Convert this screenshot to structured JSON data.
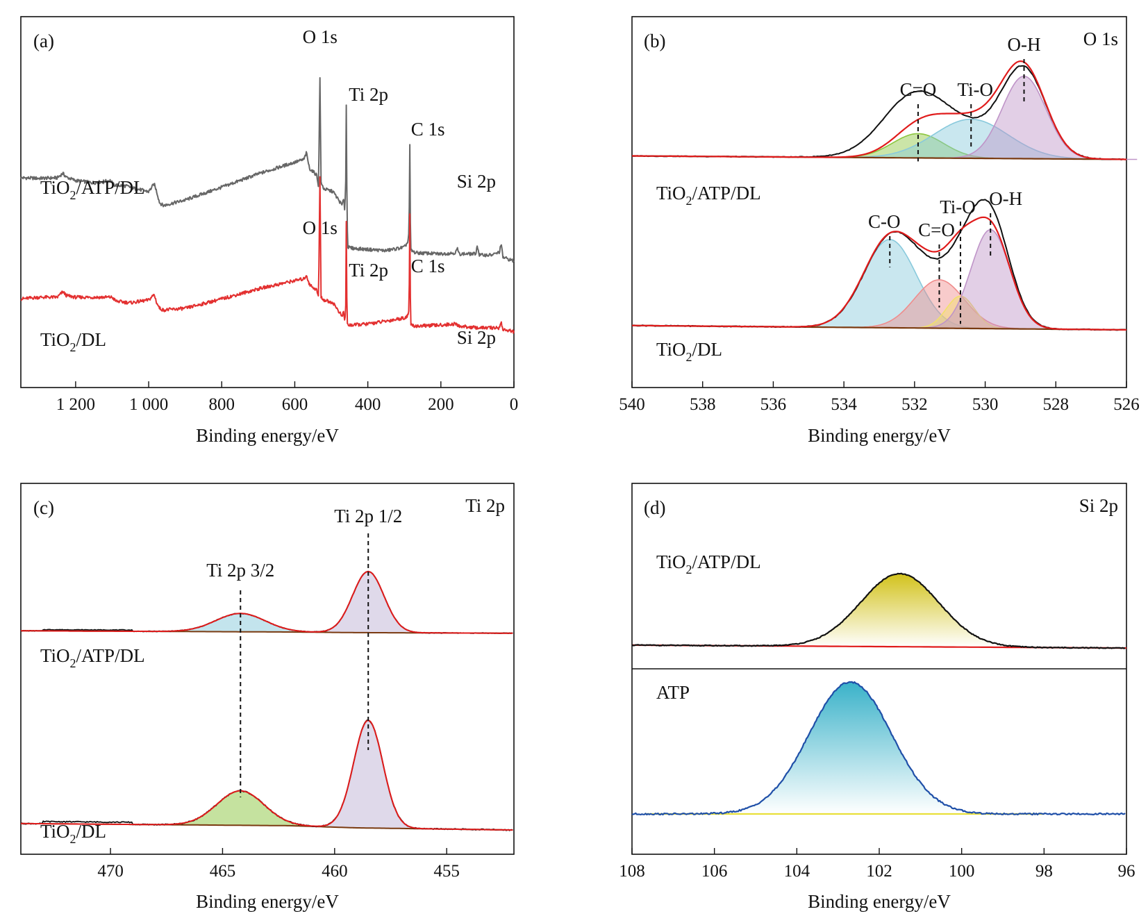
{
  "chart_data": [
    {
      "panel": "(a)",
      "type": "line",
      "xlabel": "Binding energy/eV",
      "xlim": [
        1350,
        0
      ],
      "x_reversed": true,
      "xticks": [
        1200,
        1000,
        800,
        600,
        400,
        200,
        0
      ],
      "xtick_labels": [
        "1 200",
        "1 000",
        "800",
        "600",
        "400",
        "200",
        "0"
      ],
      "y_visible": false,
      "series": [
        {
          "name": "TiO2/ATP/DL",
          "color": "#666666",
          "baseline": 0.5,
          "points": [
            [
              1350,
              0.55
            ],
            [
              1300,
              0.54
            ],
            [
              1250,
              0.55
            ],
            [
              1235,
              0.63
            ],
            [
              1225,
              0.56
            ],
            [
              1200,
              0.5
            ],
            [
              1150,
              0.46
            ],
            [
              1105,
              0.5
            ],
            [
              1095,
              0.42
            ],
            [
              1060,
              0.4
            ],
            [
              1040,
              0.36
            ],
            [
              1000,
              0.3
            ],
            [
              985,
              0.44
            ],
            [
              978,
              0.3
            ],
            [
              970,
              0.1
            ],
            [
              960,
              0.05
            ],
            [
              900,
              0.15
            ],
            [
              800,
              0.38
            ],
            [
              700,
              0.62
            ],
            [
              600,
              0.83
            ],
            [
              575,
              0.88
            ],
            [
              568,
              1.0
            ],
            [
              560,
              0.72
            ],
            [
              540,
              0.6
            ],
            [
              535,
              0.4
            ],
            [
              531,
              2.35
            ],
            [
              528,
              0.45
            ],
            [
              520,
              0.35
            ],
            [
              495,
              0.3
            ],
            [
              470,
              0.05
            ],
            [
              466,
              0.2
            ],
            [
              463,
              -0.05
            ],
            [
              460,
              0.6
            ],
            [
              459,
              1.85
            ],
            [
              457,
              -0.05
            ],
            [
              455,
              -0.7
            ],
            [
              440,
              -0.72
            ],
            [
              400,
              -0.74
            ],
            [
              350,
              -0.76
            ],
            [
              300,
              -0.7
            ],
            [
              290,
              -0.6
            ],
            [
              287,
              -0.4
            ],
            [
              285,
              1.15
            ],
            [
              283,
              -0.75
            ],
            [
              270,
              -0.8
            ],
            [
              200,
              -0.82
            ],
            [
              160,
              -0.8
            ],
            [
              155,
              -0.72
            ],
            [
              150,
              -0.82
            ],
            [
              105,
              -0.82
            ],
            [
              100,
              -0.67
            ],
            [
              95,
              -0.84
            ],
            [
              60,
              -0.84
            ],
            [
              40,
              -0.79
            ],
            [
              35,
              -0.64
            ],
            [
              30,
              -0.88
            ],
            [
              0,
              -0.95
            ]
          ]
        },
        {
          "name": "TiO2/DL",
          "color": "#e33030",
          "baseline": -1.75,
          "points": [
            [
              1350,
              -1.63
            ],
            [
              1300,
              -1.6
            ],
            [
              1250,
              -1.6
            ],
            [
              1235,
              -1.5
            ],
            [
              1225,
              -1.57
            ],
            [
              1200,
              -1.6
            ],
            [
              1100,
              -1.6
            ],
            [
              1090,
              -1.67
            ],
            [
              1050,
              -1.7
            ],
            [
              1000,
              -1.65
            ],
            [
              985,
              -1.55
            ],
            [
              978,
              -1.7
            ],
            [
              970,
              -1.8
            ],
            [
              960,
              -1.83
            ],
            [
              900,
              -1.8
            ],
            [
              800,
              -1.63
            ],
            [
              700,
              -1.45
            ],
            [
              600,
              -1.3
            ],
            [
              575,
              -1.27
            ],
            [
              568,
              -1.2
            ],
            [
              560,
              -1.37
            ],
            [
              540,
              -1.47
            ],
            [
              535,
              -1.6
            ],
            [
              531,
              0.55
            ],
            [
              528,
              -1.6
            ],
            [
              520,
              -1.65
            ],
            [
              495,
              -1.7
            ],
            [
              470,
              -1.95
            ],
            [
              466,
              -1.85
            ],
            [
              463,
              -2.05
            ],
            [
              460,
              -1.7
            ],
            [
              459,
              -0.25
            ],
            [
              457,
              -2.05
            ],
            [
              455,
              -2.1
            ],
            [
              440,
              -2.1
            ],
            [
              400,
              -2.08
            ],
            [
              350,
              -2.03
            ],
            [
              300,
              -1.97
            ],
            [
              290,
              -1.93
            ],
            [
              287,
              -1.8
            ],
            [
              285,
              -0.1
            ],
            [
              283,
              -2.1
            ],
            [
              270,
              -2.12
            ],
            [
              200,
              -2.1
            ],
            [
              160,
              -2.08
            ],
            [
              150,
              -2.12
            ],
            [
              100,
              -2.15
            ],
            [
              40,
              -2.15
            ],
            [
              35,
              -2.05
            ],
            [
              30,
              -2.18
            ],
            [
              0,
              -2.22
            ]
          ]
        }
      ],
      "annotations": [
        {
          "text": "O 1s",
          "x": 531,
          "series": 0
        },
        {
          "text": "Ti 2p",
          "x": 459,
          "series": 0
        },
        {
          "text": "C 1s",
          "x": 285,
          "series": 0
        },
        {
          "text": "Si 2p",
          "x": 103,
          "series": 0
        },
        {
          "text": "O 1s",
          "x": 531,
          "series": 1
        },
        {
          "text": "Ti 2p",
          "x": 459,
          "series": 1
        },
        {
          "text": "C 1s",
          "x": 285,
          "series": 1
        },
        {
          "text": "Si 2p",
          "x": 103,
          "series": 1
        }
      ]
    },
    {
      "panel": "(b)",
      "type": "line",
      "core_level": "O 1s",
      "xlabel": "Binding energy/eV",
      "xlim": [
        540,
        526
      ],
      "x_reversed": true,
      "xticks": [
        540,
        538,
        536,
        534,
        532,
        530,
        528,
        526
      ],
      "xtick_labels": [
        "540",
        "538",
        "536",
        "534",
        "532",
        "530",
        "528",
        "526"
      ],
      "y_visible": false,
      "samples": [
        {
          "name": "TiO2/ATP/DL",
          "background": [
            [
              540,
              0.06
            ],
            [
              526,
              0.02
            ]
          ],
          "raw_curve_color": "#111111",
          "envelope_color": "#e01b1b",
          "raw_peaks": [
            {
              "center": 528.9,
              "height": 0.95,
              "width": 0.62
            },
            {
              "center": 530.9,
              "height": 0.38,
              "width": 1.3
            },
            {
              "center": 532.1,
              "height": 0.5,
              "width": 0.85
            }
          ],
          "components": [
            {
              "label": "C=O",
              "center": 531.9,
              "height": 0.28,
              "width": 0.72,
              "color": "#8cc63f"
            },
            {
              "label": "Ti-O",
              "center": 530.4,
              "height": 0.45,
              "width": 1.05,
              "color": "#88c9dc"
            },
            {
              "label": "O-H",
              "center": 528.9,
              "height": 0.95,
              "width": 0.62,
              "color": "#bf94c8"
            }
          ]
        },
        {
          "name": "TiO2/DL",
          "background": [
            [
              540,
              0.06
            ],
            [
              526,
              0.02
            ]
          ],
          "raw_curve_color": "#111111",
          "envelope_color": "#e01b1b",
          "raw_peaks": [
            {
              "center": 529.85,
              "height": 1.0,
              "width": 0.55
            },
            {
              "center": 530.6,
              "height": 0.35,
              "width": 0.5
            },
            {
              "center": 531.4,
              "height": 0.35,
              "width": 0.75
            },
            {
              "center": 532.7,
              "height": 0.8,
              "width": 0.75
            }
          ],
          "components": [
            {
              "label": "C-O",
              "center": 532.7,
              "height": 0.82,
              "width": 0.75,
              "color": "#88c9dc"
            },
            {
              "label": "C=O",
              "center": 531.3,
              "height": 0.45,
              "width": 0.7,
              "color": "#f08c8c"
            },
            {
              "label": "Ti-O",
              "center": 530.7,
              "height": 0.3,
              "width": 0.4,
              "color": "#f2e06b"
            },
            {
              "label": "O-H",
              "center": 529.85,
              "height": 0.92,
              "width": 0.55,
              "color": "#bf94c8"
            }
          ]
        }
      ]
    },
    {
      "panel": "(c)",
      "type": "line",
      "core_level": "Ti 2p",
      "xlabel": "Binding energy/eV",
      "xlim": [
        474,
        452
      ],
      "x_reversed": true,
      "xticks": [
        470,
        465,
        460,
        455
      ],
      "xtick_labels": [
        "470",
        "465",
        "460",
        "455"
      ],
      "y_visible": false,
      "guide_lines": [
        464.2,
        458.5
      ],
      "samples": [
        {
          "name": "TiO2/ATP/DL",
          "background": [
            [
              474,
              0.02
            ],
            [
              462,
              0.0
            ],
            [
              459,
              -0.01
            ],
            [
              452,
              -0.02
            ]
          ],
          "raw_curve_color": "#111111",
          "envelope_color": "#e01b1b",
          "components": [
            {
              "label": "Ti 2p 3/2",
              "center": 464.2,
              "height": 0.3,
              "width": 1.1,
              "color": "#88c9dc"
            },
            {
              "label": "Ti 2p 1/2",
              "center": 458.5,
              "height": 1.0,
              "width": 0.7,
              "color": "#bfb3d6"
            }
          ]
        },
        {
          "name": "TiO2/DL",
          "background": [
            [
              474,
              0.04
            ],
            [
              462,
              0.02
            ],
            [
              459,
              0.0
            ],
            [
              452,
              -0.02
            ]
          ],
          "raw_curve_color": "#111111",
          "envelope_color": "#e01b1b",
          "components": [
            {
              "label": "Ti 2p 3/2",
              "center": 464.2,
              "height": 0.32,
              "width": 1.05,
              "color": "#8cc63f"
            },
            {
              "label": "Ti 2p 1/2",
              "center": 458.5,
              "height": 1.0,
              "width": 0.65,
              "color": "#bfb3d6"
            }
          ]
        }
      ]
    },
    {
      "panel": "(d)",
      "type": "line",
      "core_level": "Si 2p",
      "xlabel": "Binding energy/eV",
      "xlim": [
        108,
        96
      ],
      "x_reversed": true,
      "xticks": [
        108,
        106,
        104,
        102,
        100,
        98,
        96
      ],
      "xtick_labels": [
        "108",
        "106",
        "104",
        "102",
        "100",
        "98",
        "96"
      ],
      "y_visible": false,
      "samples": [
        {
          "name": "TiO2/ATP/DL",
          "background": [
            [
              108,
              0.02
            ],
            [
              96,
              -0.02
            ]
          ],
          "raw_curve_color": "#111111",
          "baseline_color": "#e01b1b",
          "components": [
            {
              "center": 101.5,
              "height": 1.0,
              "width": 0.95,
              "color": "#d4c42a"
            }
          ]
        },
        {
          "name": "ATP",
          "background": [
            [
              108,
              0.0
            ],
            [
              96,
              0.0
            ]
          ],
          "raw_curve_color": "#1f4fa8",
          "baseline_color": "#e8e03a",
          "components": [
            {
              "center": 102.7,
              "height": 1.0,
              "width": 1.0,
              "color": "#3fb0c8"
            }
          ]
        }
      ]
    }
  ]
}
